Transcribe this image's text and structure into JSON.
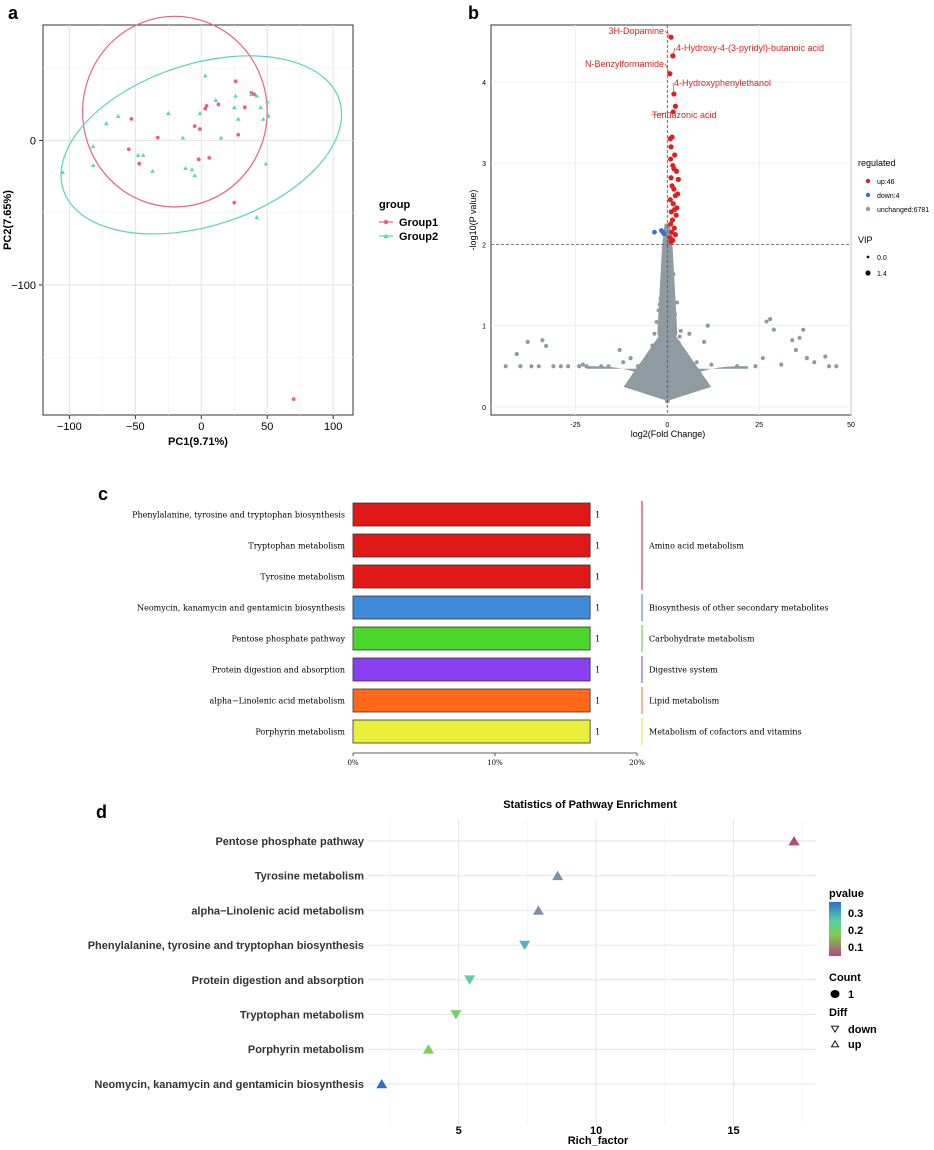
{
  "chart_data": [
    {
      "panel": "a",
      "type": "scatter",
      "xlabel": "PC1(9.71%)",
      "ylabel": "PC2(7.65%)",
      "xlim": [
        -120,
        115
      ],
      "ylim": [
        -190,
        80
      ],
      "xticks": [
        -100,
        -50,
        0,
        50,
        100
      ],
      "yticks": [
        0,
        -100
      ],
      "legend": {
        "title": "group",
        "placement": "right"
      },
      "series": [
        {
          "name": "Group1",
          "color": "#e8637a",
          "marker": "circle",
          "ellipse": {
            "cx": -20,
            "cy": 20,
            "rx": 70,
            "ry": 66
          },
          "points": [
            [
              -53,
              15
            ],
            [
              -55,
              -6
            ],
            [
              -47,
              -16
            ],
            [
              -33,
              2
            ],
            [
              -5,
              10
            ],
            [
              -1,
              8
            ],
            [
              3,
              22
            ],
            [
              -2,
              -13
            ],
            [
              6,
              -12
            ],
            [
              13,
              25
            ],
            [
              26,
              41
            ],
            [
              33,
              23
            ],
            [
              38,
              33
            ],
            [
              40,
              32
            ],
            [
              28,
              4
            ],
            [
              25,
              -43
            ],
            [
              70,
              -179
            ],
            [
              4,
              24
            ]
          ]
        },
        {
          "name": "Group2",
          "color": "#58d6b6",
          "marker": "triangle",
          "ellipse": {
            "cx": 0,
            "cy": -3,
            "rx": 110,
            "ry": 56,
            "angle": -18
          },
          "points": [
            [
              -105,
              -22
            ],
            [
              -82,
              -17
            ],
            [
              -82,
              -4
            ],
            [
              -72,
              12
            ],
            [
              -63,
              17
            ],
            [
              -48,
              -10
            ],
            [
              -44,
              -10
            ],
            [
              -37,
              -21
            ],
            [
              -25,
              19
            ],
            [
              -14,
              2
            ],
            [
              -12,
              -19
            ],
            [
              -7,
              -20
            ],
            [
              -1,
              19
            ],
            [
              -5,
              -24
            ],
            [
              3,
              45
            ],
            [
              11,
              28
            ],
            [
              15,
              2
            ],
            [
              25,
              23
            ],
            [
              26,
              31
            ],
            [
              28,
              15
            ],
            [
              38,
              32
            ],
            [
              42,
              31
            ],
            [
              45,
              23
            ],
            [
              47,
              15
            ],
            [
              50,
              27
            ],
            [
              51,
              17
            ],
            [
              49,
              -16
            ],
            [
              42,
              -53
            ]
          ]
        }
      ]
    },
    {
      "panel": "b",
      "type": "scatter",
      "xlabel": "log2(Fold Change)",
      "ylabel": "-log10(P value)",
      "xlim": [
        -48,
        50
      ],
      "ylim": [
        -0.1,
        4.7
      ],
      "xticks": [
        -25,
        0,
        25,
        50
      ],
      "yticks": [
        0,
        1,
        2,
        3,
        4
      ],
      "threshold_y": 2,
      "threshold_x": 0,
      "legend": {
        "title": "regulated",
        "placement": "right",
        "entries": [
          {
            "label": "up:46",
            "color": "#e02020"
          },
          {
            "label": "down:4",
            "color": "#3a6fd6"
          },
          {
            "label": "unchanged:6781",
            "color": "#8e9ba0"
          }
        ],
        "size_title": "VIP",
        "size_entries": [
          "0.0",
          "1.4"
        ]
      },
      "annotations": [
        {
          "label": "3H-Dopamine",
          "x": 1.0,
          "y": 4.55
        },
        {
          "label": "4-Hydroxy-4-(3-pyridyl)-butanoic acid",
          "x": 1.5,
          "y": 4.32
        },
        {
          "label": "N-Benzylformamide",
          "x": 0.7,
          "y": 4.1
        },
        {
          "label": "4-Hydroxyphenylethanol",
          "x": 1.8,
          "y": 3.85
        },
        {
          "label": "Tenuazonic acid",
          "x": 1.6,
          "y": 3.63
        }
      ],
      "up_points": [
        [
          1.0,
          4.55
        ],
        [
          1.5,
          4.32
        ],
        [
          0.7,
          4.1
        ],
        [
          1.8,
          3.85
        ],
        [
          1.6,
          3.63
        ],
        [
          2.2,
          3.7
        ],
        [
          0.8,
          3.3
        ],
        [
          1.3,
          3.32
        ],
        [
          1.0,
          3.2
        ],
        [
          2.0,
          3.1
        ],
        [
          0.9,
          3.05
        ],
        [
          1.5,
          2.97
        ],
        [
          1.8,
          2.93
        ],
        [
          2.5,
          2.9
        ],
        [
          1.0,
          2.82
        ],
        [
          1.3,
          2.72
        ],
        [
          2.8,
          2.62
        ],
        [
          0.8,
          2.55
        ],
        [
          1.6,
          2.5
        ],
        [
          2.0,
          2.43
        ],
        [
          1.1,
          2.4
        ],
        [
          2.4,
          2.36
        ],
        [
          1.4,
          2.3
        ],
        [
          0.9,
          2.25
        ],
        [
          1.9,
          2.2
        ],
        [
          1.2,
          2.15
        ],
        [
          2.2,
          2.12
        ],
        [
          0.8,
          2.08
        ],
        [
          1.5,
          2.05
        ],
        [
          1.0,
          2.03
        ],
        [
          2.6,
          2.45
        ],
        [
          3.0,
          2.8
        ],
        [
          2.2,
          2.6
        ],
        [
          1.8,
          2.68
        ]
      ],
      "down_points": [
        [
          -3.5,
          2.15
        ],
        [
          -1.6,
          2.17
        ],
        [
          -1.2,
          2.15
        ],
        [
          -0.9,
          2.13
        ]
      ],
      "outliers": [
        [
          -44,
          0.5
        ],
        [
          -40,
          0.5
        ],
        [
          -37,
          0.5
        ],
        [
          -35,
          0.5
        ],
        [
          -31,
          0.5
        ],
        [
          -29,
          0.5
        ],
        [
          -27,
          0.5
        ],
        [
          -24,
          0.5
        ],
        [
          -22,
          0.5
        ],
        [
          -18,
          0.5
        ],
        [
          -16,
          0.5
        ],
        [
          -41,
          0.65
        ],
        [
          -38,
          0.8
        ],
        [
          -34,
          0.82
        ],
        [
          -33,
          0.75
        ],
        [
          -23,
          0.52
        ],
        [
          -12,
          0.55
        ],
        [
          -10,
          0.6
        ],
        [
          8,
          0.55
        ],
        [
          12,
          0.52
        ],
        [
          19,
          0.5
        ],
        [
          24,
          0.5
        ],
        [
          26,
          0.6
        ],
        [
          27,
          1.05
        ],
        [
          28,
          1.08
        ],
        [
          29,
          0.95
        ],
        [
          34,
          0.82
        ],
        [
          35,
          0.7
        ],
        [
          38,
          0.6
        ],
        [
          40,
          0.55
        ],
        [
          43,
          0.62
        ],
        [
          46,
          0.5
        ],
        [
          37,
          0.95
        ],
        [
          44,
          0.5
        ],
        [
          31,
          0.52
        ],
        [
          36,
          0.85
        ],
        [
          10,
          0.8
        ],
        [
          -8,
          0.5
        ],
        [
          -5,
          0.55
        ],
        [
          6,
          0.9
        ],
        [
          11,
          1.0
        ],
        [
          -13,
          0.7
        ]
      ]
    },
    {
      "panel": "c",
      "type": "bar",
      "orientation": "horizontal",
      "categories": [
        "Phenylalanine, tyrosine and tryptophan biosynthesis",
        "Tryptophan metabolism",
        "Tyrosine metabolism",
        "Neomycin, kanamycin and gentamicin biosynthesis",
        "Pentose phosphate pathway",
        "Protein digestion and absorption",
        "alpha−Linolenic acid metabolism",
        "Porphyrin metabolism"
      ],
      "values": [
        16.7,
        16.7,
        16.7,
        16.7,
        16.7,
        16.7,
        16.7,
        16.7
      ],
      "value_labels": [
        "1",
        "1",
        "1",
        "1",
        "1",
        "1",
        "1",
        "1"
      ],
      "colors": [
        "#e01818",
        "#e01818",
        "#e01818",
        "#3f8bd9",
        "#4bd62c",
        "#8a3ff0",
        "#ff6a1a",
        "#e8f03c"
      ],
      "xlim": [
        0,
        20
      ],
      "xticks": [
        "0%",
        "10%",
        "20%"
      ],
      "groups": [
        {
          "label": "Amino acid metabolism",
          "from": 0,
          "to": 2,
          "color": "#e8637a"
        },
        {
          "label": "Biosynthesis of other secondary metabolites",
          "from": 3,
          "to": 3,
          "color": "#7ab3de"
        },
        {
          "label": "Carbohydrate metabolism",
          "from": 4,
          "to": 4,
          "color": "#8fe07a"
        },
        {
          "label": "Digestive system",
          "from": 5,
          "to": 5,
          "color": "#a487ee"
        },
        {
          "label": "Lipid metabolism",
          "from": 6,
          "to": 6,
          "color": "#ffa07a"
        },
        {
          "label": "Metabolism of cofactors and vitamins",
          "from": 7,
          "to": 7,
          "color": "#eef07a"
        }
      ]
    },
    {
      "panel": "d",
      "type": "scatter",
      "title": "Statistics of Pathway Enrichment",
      "xlabel": "Rich_factor",
      "xlim": [
        1.7,
        18
      ],
      "xticks": [
        5,
        10,
        15
      ],
      "categories": [
        "Pentose phosphate pathway",
        "Tyrosine metabolism",
        "alpha−Linolenic acid metabolism",
        "Phenylalanine, tyrosine and tryptophan biosynthesis",
        "Protein digestion and absorption",
        "Tryptophan metabolism",
        "Porphyrin metabolism",
        "Neomycin, kanamycin and gentamicin biosynthesis"
      ],
      "points": [
        {
          "x": 17.2,
          "pvalue": 0.05,
          "diff": "up",
          "color": "#b8477e"
        },
        {
          "x": 8.6,
          "pvalue": 0.2,
          "diff": "up",
          "color": "#7d8fab"
        },
        {
          "x": 7.9,
          "pvalue": 0.22,
          "diff": "up",
          "color": "#7d8fab"
        },
        {
          "x": 7.4,
          "pvalue": 0.25,
          "diff": "down",
          "color": "#4cb6c6"
        },
        {
          "x": 5.4,
          "pvalue": 0.28,
          "diff": "down",
          "color": "#58d0a4"
        },
        {
          "x": 4.9,
          "pvalue": 0.3,
          "diff": "down",
          "color": "#73cf6a"
        },
        {
          "x": 3.9,
          "pvalue": 0.32,
          "diff": "up",
          "color": "#7bcf4e"
        },
        {
          "x": 2.2,
          "pvalue": 0.36,
          "diff": "up",
          "color": "#2f6fc8"
        }
      ],
      "legend": {
        "color_title": "pvalue",
        "color_ticks": [
          "0.3",
          "0.2",
          "0.1"
        ],
        "count_title": "Count",
        "count_entries": [
          "1"
        ],
        "diff_title": "Diff",
        "diff_entries": [
          "down",
          "up"
        ]
      }
    }
  ],
  "panel_labels": [
    "a",
    "b",
    "c",
    "d"
  ]
}
